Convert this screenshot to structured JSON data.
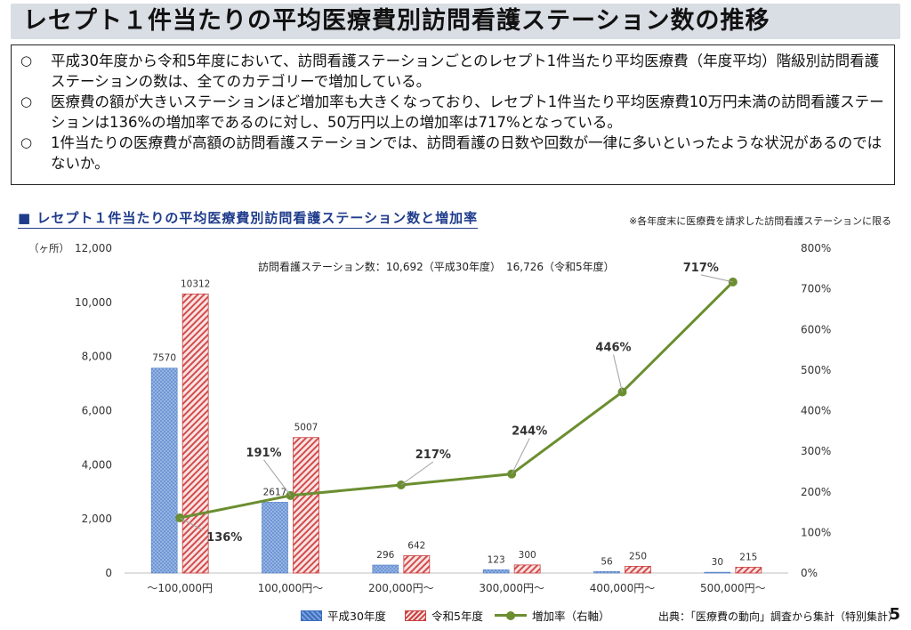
{
  "title": "レセプト１件当たりの平均医療費別訪問看護ステーション数の推移",
  "summary": [
    {
      "mark": "○",
      "text": "平成30年度から令和5年度において、訪問看護ステーションごとのレセプト1件当たり平均医療費（年度平均）階級別訪問看護ステーションの数は、全てのカテゴリーで増加している。"
    },
    {
      "mark": "○",
      "text": "医療費の額が大きいステーションほど増加率も大きくなっており、レセプト1件当たり平均医療費10万円未満の訪問看護ステーションは136%の増加率であるのに対し、50万円以上の増加率は717%となっている。"
    },
    {
      "mark": "○",
      "text": "1件当たりの医療費が高額の訪問看護ステーションでは、訪問看護の日数や回数が一律に多いといったような状況があるのではないか。"
    }
  ],
  "chart_heading": "■ レセプト１件当たりの平均医療費別訪問看護ステーション数と増加率",
  "chart_note": "※各年度末に医療費を請求した訪問看護ステーションに限る",
  "source": "出典：「医療費の動向」調査から集計（特別集計）",
  "page_number": "5",
  "chart_data": {
    "type": "bar",
    "categories": [
      "～100,000円",
      "100,000円～",
      "200,000円～",
      "300,000円～",
      "400,000円～",
      "500,000円～"
    ],
    "series": [
      {
        "name": "平成30年度",
        "values": [
          7570,
          2617,
          296,
          123,
          56,
          30
        ],
        "color": "#3b6dbf",
        "axis": "left"
      },
      {
        "name": "令和5年度",
        "values": [
          10312,
          5007,
          642,
          300,
          250,
          215
        ],
        "color": "#c94040",
        "axis": "left"
      },
      {
        "name": "増加率（右軸）",
        "type": "line",
        "values": [
          136,
          191,
          217,
          244,
          446,
          717
        ],
        "labels": [
          "136%",
          "191%",
          "217%",
          "244%",
          "446%",
          "717%"
        ],
        "color": "#6b8e30",
        "axis": "right"
      }
    ],
    "ylabel": "（ヶ所）",
    "ylim": [
      0,
      12000
    ],
    "yticks": [
      "0",
      "2,000",
      "4,000",
      "6,000",
      "8,000",
      "10,000",
      "12,000"
    ],
    "y2lim": [
      0,
      800
    ],
    "y2ticks": [
      "0%",
      "100%",
      "200%",
      "300%",
      "400%",
      "500%",
      "600%",
      "700%",
      "800%"
    ],
    "annotation": "訪問看護ステーション数：10,692（平成30年度）　16,726（令和5年度）",
    "legend_position": "bottom",
    "grid": false
  }
}
